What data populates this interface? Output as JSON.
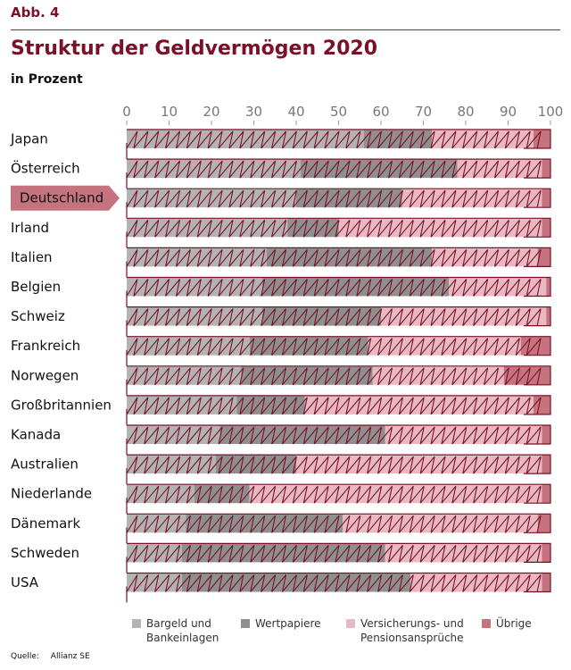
{
  "header": {
    "figure_label": "Abb. 4",
    "title": "Struktur der Geldvermögen 2020",
    "subtitle": "in Prozent"
  },
  "source": {
    "label": "Quelle:",
    "value": "Allianz SE"
  },
  "colors": {
    "bargeld": "#b3b3b3",
    "wertpapiere": "#8f8f8f",
    "versicherung": "#e8b9c2",
    "uebrige": "#c4737f",
    "frame": "#7a1126",
    "highlight": "#c4737f"
  },
  "chart_data": {
    "type": "bar",
    "orientation": "horizontal",
    "stacked": true,
    "title": "Struktur der Geldvermögen 2020",
    "subtitle": "in Prozent",
    "xlabel": "",
    "ylabel": "",
    "xlim": [
      0,
      100
    ],
    "xticks": [
      0,
      10,
      20,
      30,
      40,
      50,
      60,
      70,
      80,
      90,
      100
    ],
    "grid": false,
    "legend_position": "bottom",
    "highlighted_category": "Deutschland",
    "categories": [
      "Japan",
      "Österreich",
      "Deutschland",
      "Irland",
      "Italien",
      "Belgien",
      "Schweiz",
      "Frankreich",
      "Norwegen",
      "Großbritannien",
      "Kanada",
      "Australien",
      "Niederlande",
      "Dänemark",
      "Schweden",
      "USA"
    ],
    "series": [
      {
        "name": "Bargeld und Bankeinlagen",
        "key": "bargeld",
        "values": [
          56,
          41,
          40,
          38,
          33,
          32,
          32,
          29,
          27,
          26,
          22,
          21,
          16,
          14,
          13,
          13
        ]
      },
      {
        "name": "Wertpapiere",
        "key": "wertpapiere",
        "values": [
          16,
          37,
          25,
          12,
          39,
          44,
          28,
          28,
          31,
          16,
          39,
          19,
          13,
          37,
          48,
          54
        ]
      },
      {
        "name": "Versicherungs- und Pensionsansprüche",
        "key": "versicherung",
        "values": [
          24,
          20,
          33,
          48,
          25,
          23,
          39,
          36,
          31,
          54,
          37,
          58,
          69,
          46,
          37,
          31
        ]
      },
      {
        "name": "Übrige",
        "key": "uebrige",
        "values": [
          4,
          2,
          2,
          2,
          3,
          1,
          1,
          7,
          11,
          4,
          2,
          2,
          2,
          3,
          2,
          2
        ]
      }
    ]
  },
  "legend": [
    {
      "line1": "Bargeld und",
      "line2": "Bankeinlagen",
      "key": "bargeld"
    },
    {
      "line1": "Wertpapiere",
      "line2": "",
      "key": "wertpapiere"
    },
    {
      "line1": "Versicherungs- und",
      "line2": "Pensionsansprüche",
      "key": "versicherung"
    },
    {
      "line1": "Übrige",
      "line2": "",
      "key": "uebrige"
    }
  ]
}
